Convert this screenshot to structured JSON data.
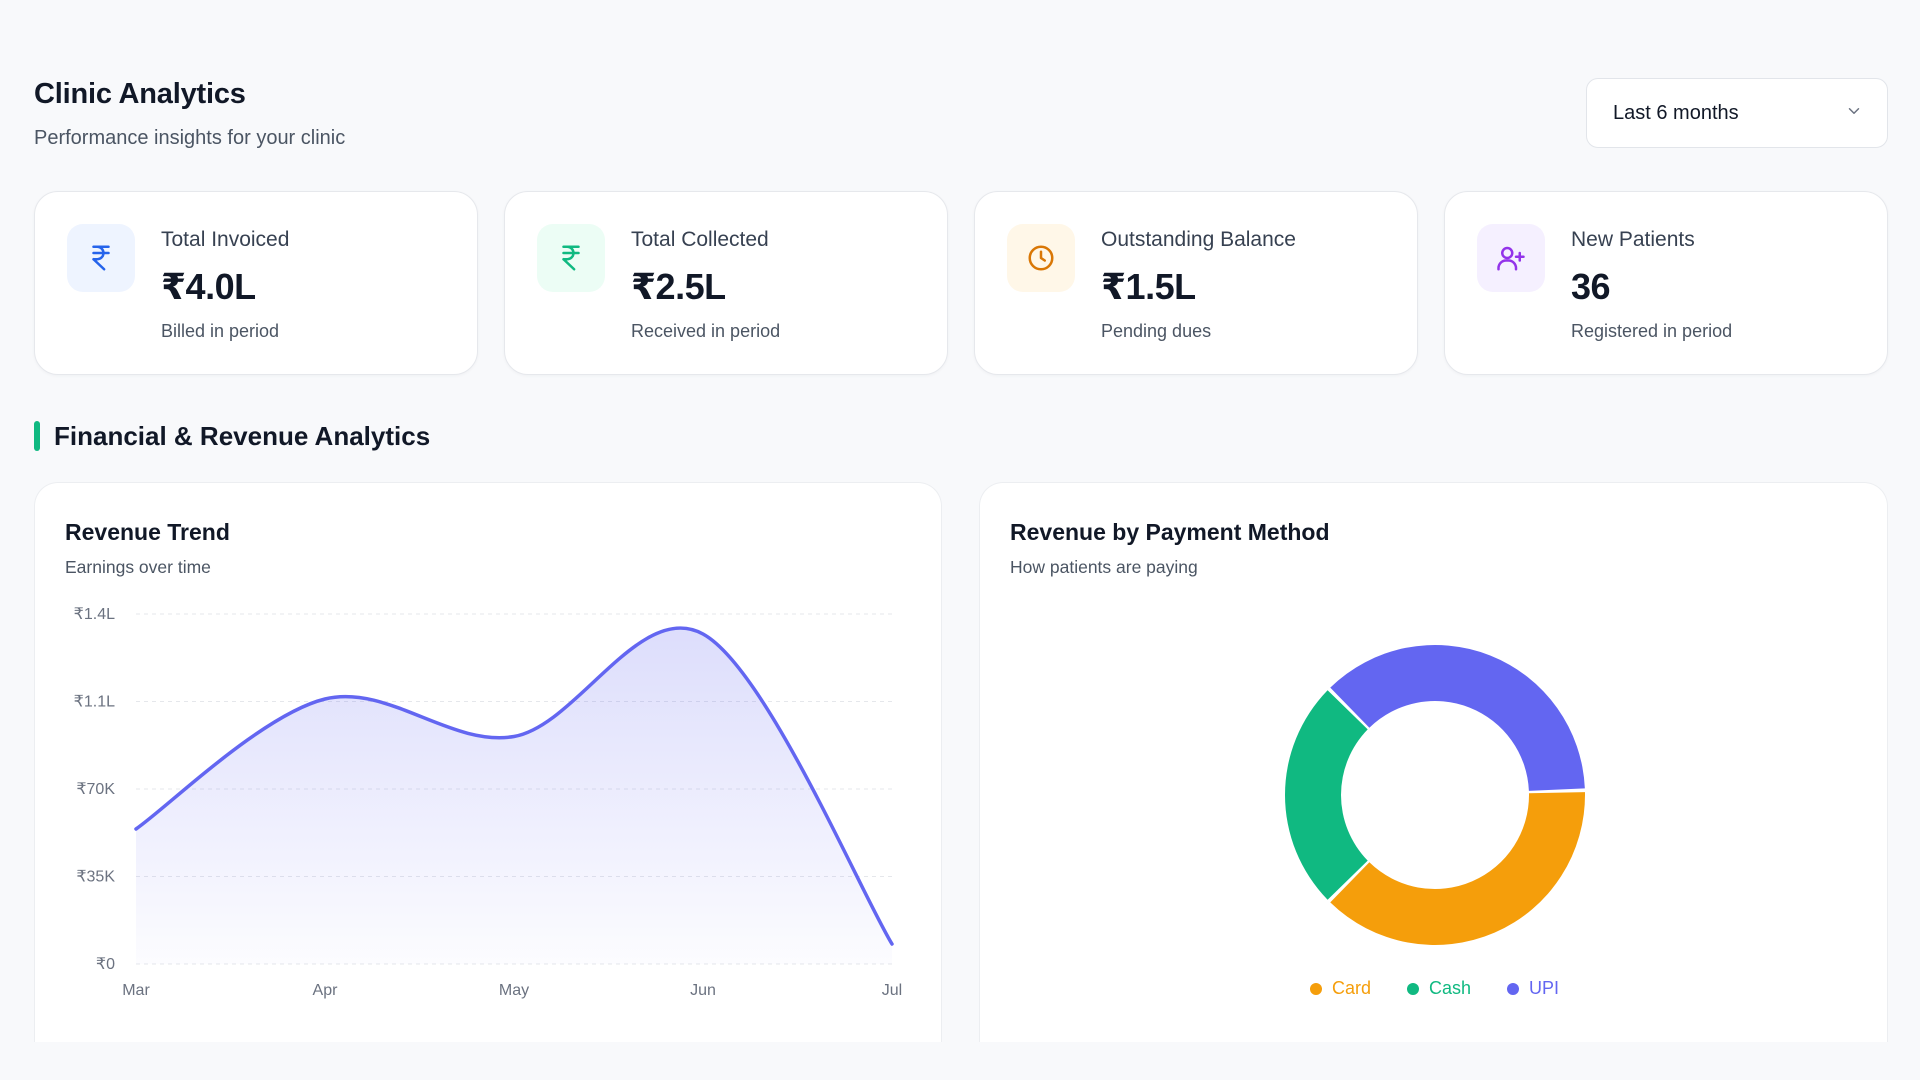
{
  "header": {
    "title": "Clinic Analytics",
    "subtitle": "Performance insights for your clinic",
    "range_select": {
      "value": "Last 6 months",
      "icon": "chevron-down-icon"
    }
  },
  "stats": [
    {
      "label": "Total Invoiced",
      "value": "₹4.0L",
      "note": "Billed in period",
      "icon": "rupee-icon",
      "color": "#2563eb",
      "bg": "#eef4ff"
    },
    {
      "label": "Total Collected",
      "value": "₹2.5L",
      "note": "Received in period",
      "icon": "rupee-icon",
      "color": "#10b981",
      "bg": "#ecfdf5"
    },
    {
      "label": "Outstanding Balance",
      "value": "₹1.5L",
      "note": "Pending dues",
      "icon": "clock-icon",
      "color": "#d97706",
      "bg": "#fff7e8"
    },
    {
      "label": "New Patients",
      "value": "36",
      "note": "Registered in period",
      "icon": "user-plus-icon",
      "color": "#9333ea",
      "bg": "#f5f0ff"
    }
  ],
  "section": {
    "title": "Financial & Revenue Analytics",
    "accent": "#10b981"
  },
  "revenue_trend": {
    "title": "Revenue Trend",
    "subtitle": "Earnings over time",
    "chart_data": {
      "type": "area",
      "x": [
        "Mar",
        "Apr",
        "May",
        "Jun",
        "Jul"
      ],
      "values": [
        54000,
        106000,
        91000,
        132000,
        8000
      ],
      "y_ticks": [
        "₹0",
        "₹35K",
        "₹70K",
        "₹1.1L",
        "₹1.4L"
      ],
      "y_tick_values": [
        0,
        35000,
        70000,
        105000,
        140000
      ],
      "ylim": [
        0,
        140000
      ],
      "grid": true,
      "line_color": "#6366f1"
    }
  },
  "payment_method": {
    "title": "Revenue by Payment Method",
    "subtitle": "How patients are paying",
    "chart_data": {
      "type": "pie",
      "donut": true,
      "labels": [
        "UPI",
        "Card",
        "Cash"
      ],
      "values": [
        37,
        38,
        25
      ],
      "colors": [
        "#6366f1",
        "#f59e0b",
        "#10b981"
      ],
      "legend_position": "bottom"
    },
    "legend": [
      {
        "label": "Card",
        "color": "#f59e0b"
      },
      {
        "label": "Cash",
        "color": "#10b981"
      },
      {
        "label": "UPI",
        "color": "#6366f1"
      }
    ]
  }
}
